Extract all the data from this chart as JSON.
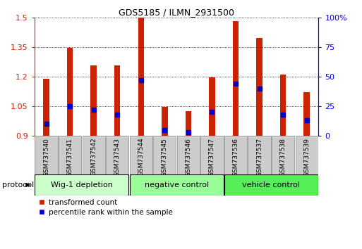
{
  "title": "GDS5185 / ILMN_2931500",
  "samples": [
    "GSM737540",
    "GSM737541",
    "GSM737542",
    "GSM737543",
    "GSM737544",
    "GSM737545",
    "GSM737546",
    "GSM737547",
    "GSM737536",
    "GSM737537",
    "GSM737538",
    "GSM737539"
  ],
  "transformed_counts": [
    1.19,
    1.345,
    1.255,
    1.255,
    1.5,
    1.045,
    1.025,
    1.195,
    1.48,
    1.395,
    1.21,
    1.12
  ],
  "percentile_ranks": [
    10,
    25,
    22,
    18,
    47,
    5,
    3,
    20,
    44,
    40,
    18,
    13
  ],
  "groups": [
    {
      "label": "Wig-1 depletion",
      "start": 0,
      "end": 4,
      "color": "#ccffcc"
    },
    {
      "label": "negative control",
      "start": 4,
      "end": 8,
      "color": "#99ff99"
    },
    {
      "label": "vehicle control",
      "start": 8,
      "end": 12,
      "color": "#55ee55"
    }
  ],
  "ylim_left": [
    0.9,
    1.5
  ],
  "ylim_right": [
    0,
    100
  ],
  "yticks_left": [
    0.9,
    1.05,
    1.2,
    1.35,
    1.5
  ],
  "yticks_right": [
    0,
    25,
    50,
    75,
    100
  ],
  "bar_color": "#cc2200",
  "dot_color": "#0000cc",
  "left_axis_color": "#cc2200",
  "right_axis_color": "#0000cc",
  "legend_items": [
    "transformed count",
    "percentile rank within the sample"
  ],
  "bar_width": 0.25,
  "protocol_label": "protocol"
}
